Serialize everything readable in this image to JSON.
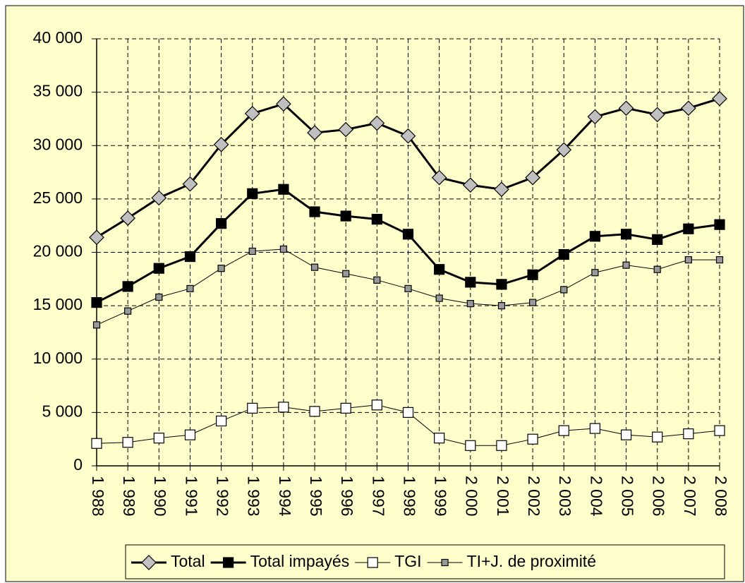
{
  "chart_data": {
    "type": "line",
    "categories": [
      {
        "value": 1988,
        "label": "1 988"
      },
      {
        "value": 1989,
        "label": "1 989"
      },
      {
        "value": 1990,
        "label": "1 990"
      },
      {
        "value": 1991,
        "label": "1 991"
      },
      {
        "value": 1992,
        "label": "1 992"
      },
      {
        "value": 1993,
        "label": "1 993"
      },
      {
        "value": 1994,
        "label": "1 994"
      },
      {
        "value": 1995,
        "label": "1 995"
      },
      {
        "value": 1996,
        "label": "1 996"
      },
      {
        "value": 1997,
        "label": "1 997"
      },
      {
        "value": 1998,
        "label": "1 998"
      },
      {
        "value": 1999,
        "label": "1 999"
      },
      {
        "value": 2000,
        "label": "2 000"
      },
      {
        "value": 2001,
        "label": "2 001"
      },
      {
        "value": 2002,
        "label": "2 002"
      },
      {
        "value": 2003,
        "label": "2 003"
      },
      {
        "value": 2004,
        "label": "2 004"
      },
      {
        "value": 2005,
        "label": "2 005"
      },
      {
        "value": 2006,
        "label": "2 006"
      },
      {
        "value": 2007,
        "label": "2 007"
      },
      {
        "value": 2008,
        "label": "2 008"
      }
    ],
    "series": [
      {
        "name": "Total",
        "color": "#000000",
        "marker": "diamond",
        "marker_color": "#c0c0c0",
        "line_width": 3,
        "values": [
          21400,
          23200,
          25100,
          26400,
          30100,
          33000,
          33900,
          31200,
          31500,
          32100,
          30900,
          27000,
          26300,
          25900,
          27000,
          29600,
          32700,
          33500,
          32900,
          33500,
          34400
        ]
      },
      {
        "name": "Total impayés",
        "color": "#000000",
        "marker": "square",
        "marker_color": "#000000",
        "line_width": 3,
        "values": [
          15300,
          16800,
          18500,
          19600,
          22700,
          25500,
          25900,
          23800,
          23400,
          23100,
          21700,
          18400,
          17200,
          17000,
          17900,
          19800,
          21500,
          21700,
          21200,
          22200,
          22600
        ]
      },
      {
        "name": "TGI",
        "color": "#000000",
        "marker": "square",
        "marker_color": "#ffffff",
        "line_width": 1,
        "values": [
          2100,
          2200,
          2600,
          2900,
          4200,
          5400,
          5500,
          5100,
          5400,
          5700,
          5000,
          2600,
          1900,
          1900,
          2500,
          3300,
          3500,
          2900,
          2700,
          3000,
          3300
        ]
      },
      {
        "name": "TI+J. de proximité",
        "color": "#000000",
        "marker": "small-square",
        "marker_color": "#999999",
        "line_width": 1,
        "values": [
          13200,
          14500,
          15800,
          16600,
          18500,
          20100,
          20300,
          18600,
          18000,
          17400,
          16600,
          15700,
          15200,
          15000,
          15300,
          16500,
          18100,
          18800,
          18400,
          19300,
          19300
        ]
      }
    ],
    "ylim": [
      0,
      40000
    ],
    "yticks": [
      0,
      {
        "value": 5000,
        "label": "5 000"
      },
      {
        "value": 10000,
        "label": "10 000"
      },
      {
        "value": 15000,
        "label": "15 000"
      },
      {
        "value": 20000,
        "label": "20 000"
      },
      {
        "value": 25000,
        "label": "25 000"
      },
      {
        "value": 30000,
        "label": "30 000"
      },
      {
        "value": 35000,
        "label": "35 000"
      },
      {
        "value": 40000,
        "label": "40 000"
      }
    ],
    "grid": true
  }
}
